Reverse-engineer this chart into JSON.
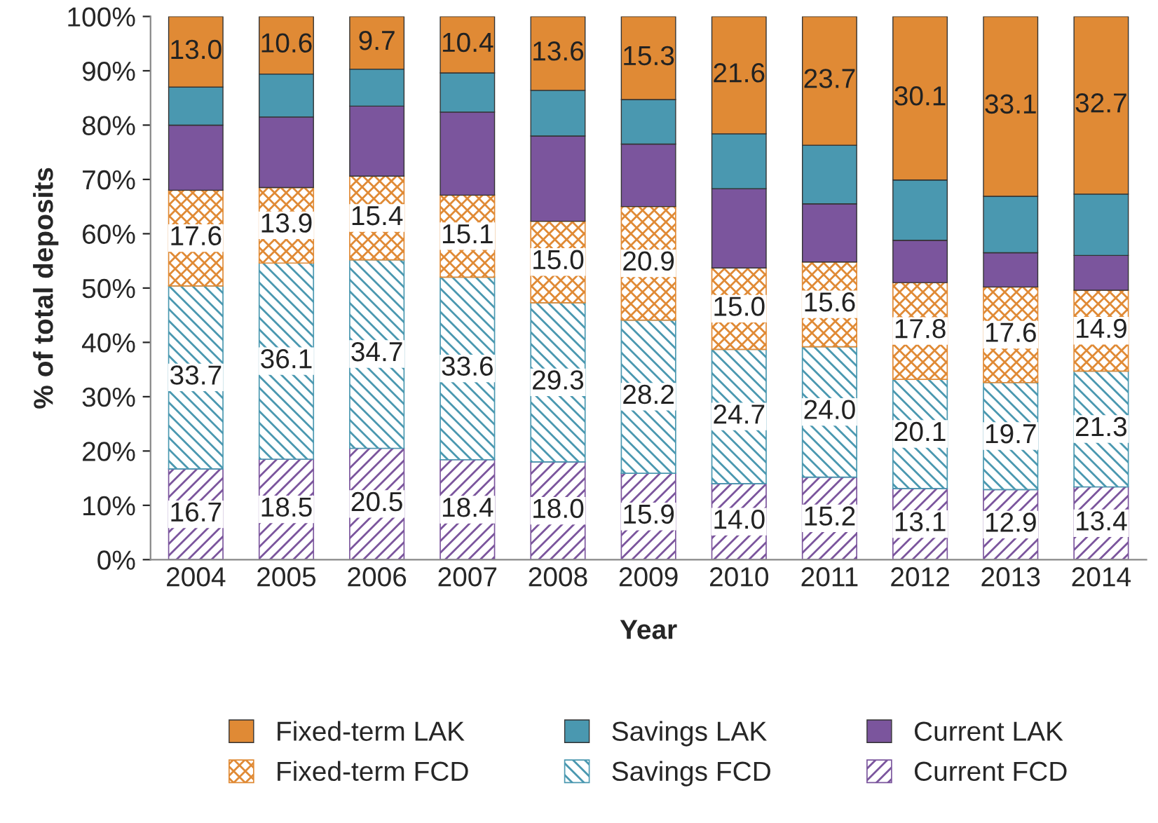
{
  "chart_data": {
    "type": "bar",
    "stacked": true,
    "xlabel": "Year",
    "ylabel": "% of total deposits",
    "categories": [
      "2004",
      "2005",
      "2006",
      "2007",
      "2008",
      "2009",
      "2010",
      "2011",
      "2012",
      "2013",
      "2014"
    ],
    "ylim": [
      0,
      100
    ],
    "yticks": [
      {
        "value": 0,
        "label": "0%"
      },
      {
        "value": 10,
        "label": "10%"
      },
      {
        "value": 20,
        "label": "20%"
      },
      {
        "value": 30,
        "label": "30%"
      },
      {
        "value": 40,
        "label": "40%"
      },
      {
        "value": 50,
        "label": "50%"
      },
      {
        "value": 60,
        "label": "60%"
      },
      {
        "value": 70,
        "label": "70%"
      },
      {
        "value": 80,
        "label": "80%"
      },
      {
        "value": 90,
        "label": "90%"
      },
      {
        "value": 100,
        "label": "100%"
      }
    ],
    "grid": false,
    "legend": "bottom",
    "series": [
      {
        "name": "Current FCD",
        "color": "#7b559d",
        "values": [
          16.7,
          18.5,
          20.5,
          18.4,
          18.0,
          15.9,
          14.0,
          15.2,
          13.1,
          12.9,
          13.4
        ],
        "value_labels": [
          "16.7",
          "18.5",
          "20.5",
          "18.4",
          "18.0",
          "15.9",
          "14.0",
          "15.2",
          "13.1",
          "12.9",
          "13.4"
        ]
      },
      {
        "name": "Savings FCD",
        "color": "#4a98b0",
        "values": [
          33.7,
          36.1,
          34.7,
          33.6,
          29.3,
          28.2,
          24.7,
          24.0,
          20.1,
          19.7,
          21.3
        ],
        "value_labels": [
          "33.7",
          "36.1",
          "34.7",
          "33.6",
          "29.3",
          "28.2",
          "24.7",
          "24.0",
          "20.1",
          "19.7",
          "21.3"
        ]
      },
      {
        "name": "Fixed-term FCD",
        "color": "#e08a35",
        "values": [
          17.6,
          13.9,
          15.4,
          15.1,
          15.0,
          20.9,
          15.0,
          15.6,
          17.8,
          17.6,
          14.9
        ],
        "value_labels": [
          "17.6",
          "13.9",
          "15.4",
          "15.1",
          "15.0",
          "20.9",
          "15.0",
          "15.6",
          "17.8",
          "17.6",
          "14.9"
        ]
      },
      {
        "name": "Current LAK",
        "color": "#7b559d",
        "values": [
          12.0,
          13.0,
          12.9,
          15.3,
          15.7,
          11.5,
          14.6,
          10.7,
          7.8,
          6.3,
          6.4
        ]
      },
      {
        "name": "Savings LAK",
        "color": "#4a98b0",
        "values": [
          7.0,
          7.9,
          6.8,
          7.2,
          8.4,
          8.2,
          10.1,
          10.8,
          11.1,
          10.4,
          11.3
        ]
      },
      {
        "name": "Fixed-term LAK",
        "color": "#e08a35",
        "values": [
          13.0,
          10.6,
          9.7,
          10.4,
          13.6,
          15.3,
          21.6,
          23.7,
          30.1,
          33.1,
          32.7
        ],
        "value_labels": [
          "13.0",
          "10.6",
          "9.7",
          "10.4",
          "13.6",
          "15.3",
          "21.6",
          "23.7",
          "30.1",
          "33.1",
          "32.7"
        ]
      }
    ]
  }
}
